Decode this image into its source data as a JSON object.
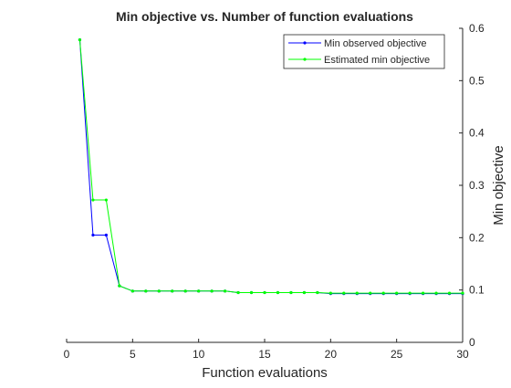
{
  "chart_data": {
    "type": "line",
    "title": "Min objective vs. Number of function evaluations",
    "xlabel": "Function evaluations",
    "ylabel": "Min objective",
    "xlim": [
      0,
      30
    ],
    "ylim": [
      0,
      0.6
    ],
    "y_axis_side": "right",
    "grid": false,
    "legend_placement": "top-right",
    "x_ticks": [
      "0",
      "5",
      "10",
      "15",
      "20",
      "25",
      "30"
    ],
    "y_ticks": [
      "0",
      "0.1",
      "0.2",
      "0.3",
      "0.4",
      "0.5",
      "0.6"
    ],
    "x": [
      1,
      2,
      3,
      4,
      5,
      6,
      7,
      8,
      9,
      10,
      11,
      12,
      13,
      14,
      15,
      16,
      17,
      18,
      19,
      20,
      21,
      22,
      23,
      24,
      25,
      26,
      27,
      28,
      29,
      30
    ],
    "series": [
      {
        "name": "Min observed objective",
        "color": "#0000ff",
        "values": [
          0.578,
          0.205,
          0.205,
          0.108,
          0.098,
          0.098,
          0.098,
          0.098,
          0.098,
          0.098,
          0.098,
          0.098,
          0.095,
          0.095,
          0.095,
          0.095,
          0.095,
          0.095,
          0.095,
          0.093,
          0.093,
          0.093,
          0.093,
          0.093,
          0.093,
          0.093,
          0.093,
          0.093,
          0.093,
          0.093
        ]
      },
      {
        "name": "Estimated min objective",
        "color": "#00ff00",
        "values": [
          0.578,
          0.272,
          0.272,
          0.108,
          0.098,
          0.098,
          0.098,
          0.098,
          0.098,
          0.098,
          0.098,
          0.098,
          0.095,
          0.095,
          0.095,
          0.095,
          0.095,
          0.095,
          0.095,
          0.094,
          0.094,
          0.094,
          0.094,
          0.094,
          0.094,
          0.094,
          0.094,
          0.094,
          0.094,
          0.094
        ]
      }
    ]
  }
}
